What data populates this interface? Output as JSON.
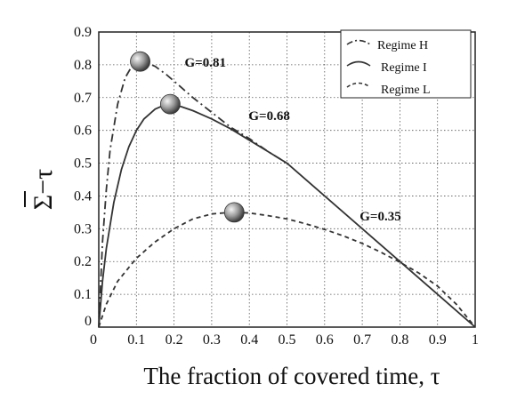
{
  "chart_data": {
    "type": "line",
    "title": "",
    "xlabel": "The fraction of covered time, τ",
    "ylabel_symbol": "Σ",
    "ylabel_suffix": "−τ",
    "xlim": [
      0,
      1
    ],
    "ylim": [
      0,
      0.9
    ],
    "grid": true,
    "legend_position": "top-right",
    "x_ticks": [
      "0",
      "0.1",
      "0.2",
      "0.3",
      "0.4",
      "0.5",
      "0.6",
      "0.7",
      "0.8",
      "0.9",
      "1"
    ],
    "y_ticks": [
      "0",
      "0.1",
      "0.2",
      "0.3",
      "0.4",
      "0.5",
      "0.6",
      "0.7",
      "0.8",
      "0.9"
    ],
    "series": [
      {
        "name": "Regime H",
        "style": "dashdot",
        "x": [
          0,
          0.01,
          0.02,
          0.03,
          0.05,
          0.07,
          0.09,
          0.11,
          0.13,
          0.15,
          0.18,
          0.2,
          0.25,
          0.3,
          0.35,
          0.4,
          0.45,
          0.5
        ],
        "y": [
          0,
          0.26,
          0.42,
          0.54,
          0.68,
          0.76,
          0.8,
          0.81,
          0.805,
          0.795,
          0.77,
          0.75,
          0.7,
          0.655,
          0.61,
          0.575,
          0.535,
          0.5
        ]
      },
      {
        "name": "Regime I",
        "style": "solid",
        "x": [
          0,
          0.01,
          0.02,
          0.04,
          0.06,
          0.08,
          0.1,
          0.12,
          0.15,
          0.18,
          0.2,
          0.22,
          0.25,
          0.3,
          0.35,
          0.4,
          0.45,
          0.5,
          0.6,
          0.7,
          0.8,
          0.9,
          1.0
        ],
        "y": [
          0,
          0.14,
          0.24,
          0.38,
          0.48,
          0.55,
          0.6,
          0.635,
          0.665,
          0.68,
          0.678,
          0.672,
          0.66,
          0.635,
          0.605,
          0.57,
          0.535,
          0.5,
          0.4,
          0.3,
          0.2,
          0.1,
          0
        ]
      },
      {
        "name": "Regime L",
        "style": "dashed",
        "x": [
          0,
          0.02,
          0.05,
          0.1,
          0.15,
          0.2,
          0.25,
          0.3,
          0.35,
          0.4,
          0.45,
          0.5,
          0.55,
          0.6,
          0.65,
          0.7,
          0.75,
          0.8,
          0.85,
          0.9,
          0.95,
          1.0
        ],
        "y": [
          0,
          0.07,
          0.14,
          0.21,
          0.26,
          0.3,
          0.33,
          0.345,
          0.35,
          0.348,
          0.34,
          0.33,
          0.315,
          0.298,
          0.278,
          0.255,
          0.228,
          0.198,
          0.165,
          0.125,
          0.07,
          0
        ]
      }
    ],
    "maxima": [
      {
        "label": "G=0.81",
        "x": 0.11,
        "y": 0.81
      },
      {
        "label": "G=0.68",
        "x": 0.19,
        "y": 0.68
      },
      {
        "label": "G=0.35",
        "x": 0.36,
        "y": 0.35
      }
    ]
  }
}
